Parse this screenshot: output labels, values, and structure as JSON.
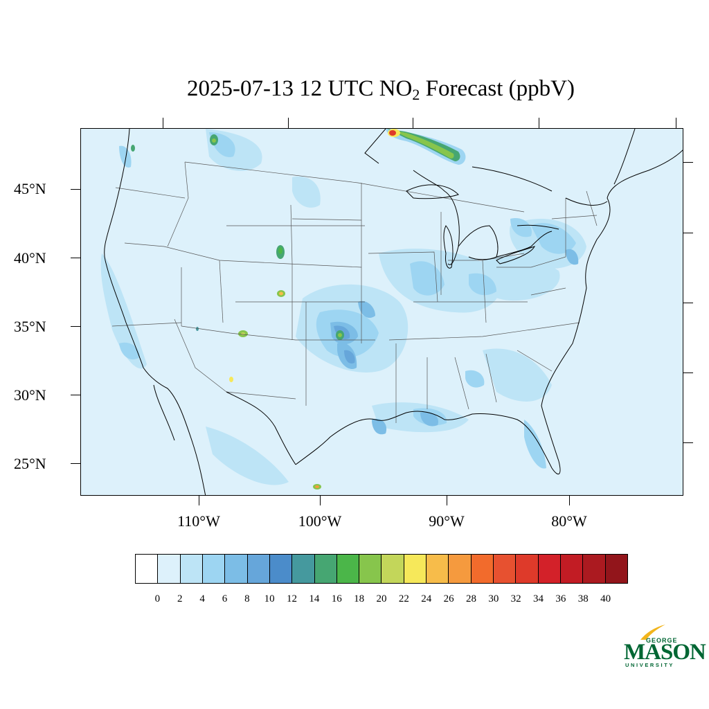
{
  "title": {
    "prefix": "2025-07-13 12 UTC NO",
    "subscript": "2",
    "suffix": " Forecast (ppbV)"
  },
  "latitude_labels": [
    "45°N",
    "40°N",
    "35°N",
    "30°N",
    "25°N"
  ],
  "longitude_labels": [
    "110°W",
    "100°W",
    "90°W",
    "80°W"
  ],
  "colorbar": {
    "labels": [
      "0",
      "2",
      "4",
      "6",
      "8",
      "10",
      "12",
      "14",
      "16",
      "18",
      "20",
      "22",
      "24",
      "26",
      "28",
      "30",
      "32",
      "34",
      "36",
      "38",
      "40"
    ],
    "colors": [
      "#ffffff",
      "#ddf1fb",
      "#bde4f6",
      "#9dd5f2",
      "#7cbde6",
      "#66a6da",
      "#4b8cca",
      "#45999e",
      "#46a672",
      "#4bb649",
      "#87c54c",
      "#c3d65a",
      "#f6e85a",
      "#f7bc4a",
      "#f59a3e",
      "#f26b2c",
      "#e75130",
      "#de3a2a",
      "#d32129",
      "#c21c24",
      "#ab1a20",
      "#92151b"
    ]
  },
  "map": {
    "background_color": "#ddf1fb",
    "hotspots": [
      {
        "name": "central-plains-no2",
        "level_ppbv": 9
      },
      {
        "name": "denver-no2",
        "level_ppbv": 16
      },
      {
        "name": "albuquerque-no2",
        "level_ppbv": 16
      },
      {
        "name": "oklahoma-city-no2",
        "level_ppbv": 18
      },
      {
        "name": "ontario-plume-no2",
        "level_ppbv": 34
      },
      {
        "name": "houston-no2",
        "level_ppbv": 12
      },
      {
        "name": "new-orleans-no2",
        "level_ppbv": 10
      },
      {
        "name": "los-angeles-no2",
        "level_ppbv": 10
      },
      {
        "name": "new-york-no2",
        "level_ppbv": 9
      }
    ]
  },
  "logo": {
    "george": "GEORGE",
    "mason": "MASON",
    "university": "UNIVERSITY"
  }
}
